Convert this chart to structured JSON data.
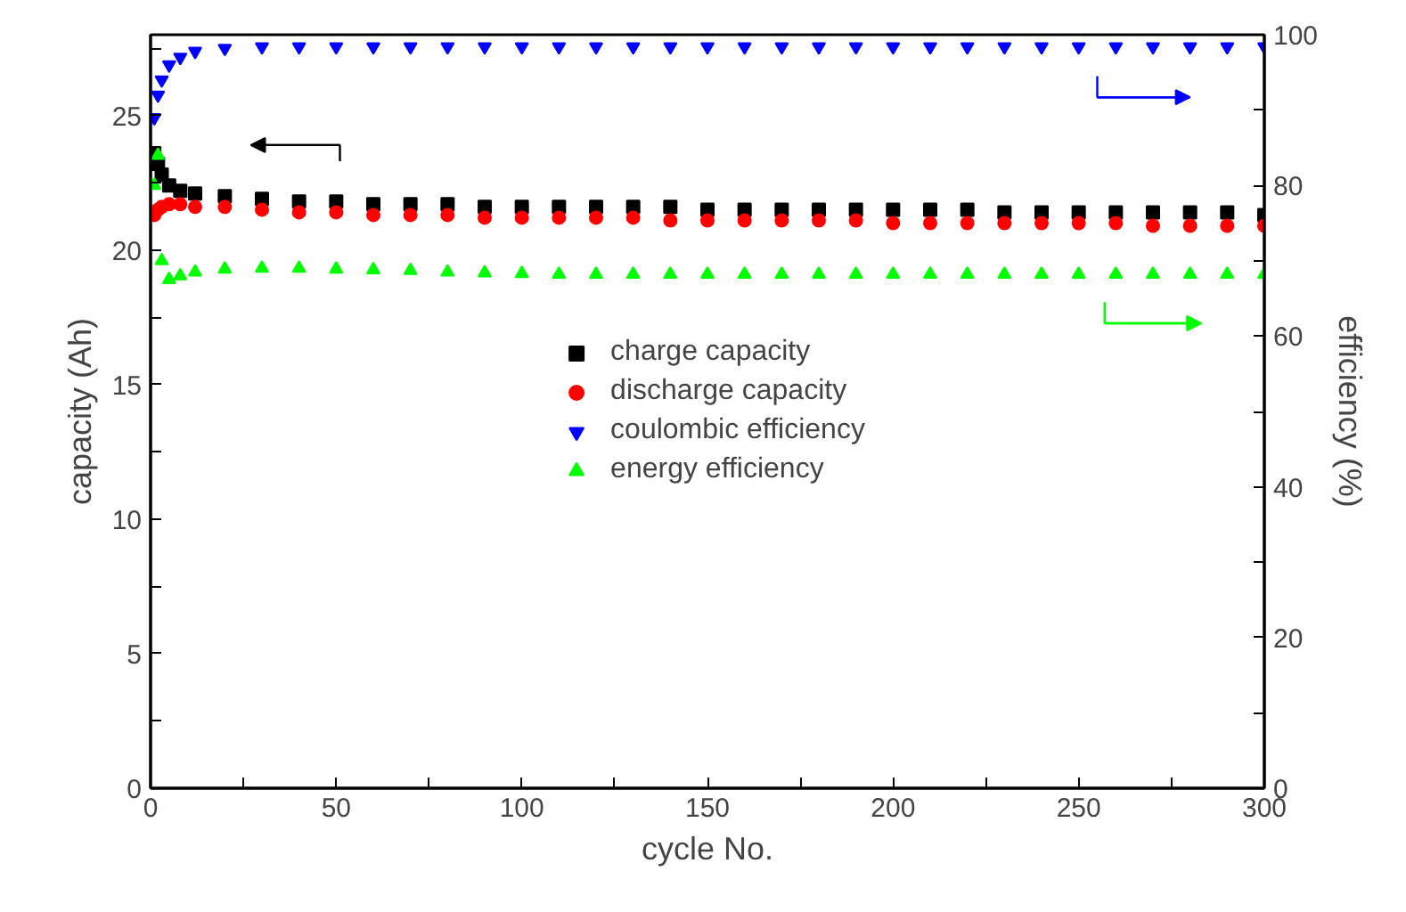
{
  "chart_data": {
    "type": "scatter",
    "xlabel": "cycle No.",
    "ylabel": "capacity (Ah)",
    "y2label": "efficiency (%)",
    "x": [
      1,
      2,
      3,
      5,
      8,
      12,
      20,
      30,
      40,
      50,
      60,
      70,
      80,
      90,
      100,
      110,
      120,
      130,
      140,
      150,
      160,
      170,
      180,
      190,
      200,
      210,
      220,
      230,
      240,
      250,
      260,
      270,
      280,
      290,
      300
    ],
    "series": [
      {
        "name": "charge capacity",
        "color": "#000000",
        "marker": "square",
        "values": [
          23.6,
          23.2,
          22.8,
          22.4,
          22.2,
          22.1,
          22.0,
          21.9,
          21.8,
          21.8,
          21.7,
          21.7,
          21.7,
          21.6,
          21.6,
          21.6,
          21.6,
          21.6,
          21.6,
          21.5,
          21.5,
          21.5,
          21.5,
          21.5,
          21.5,
          21.5,
          21.5,
          21.4,
          21.4,
          21.4,
          21.4,
          21.4,
          21.4,
          21.4,
          21.3
        ]
      },
      {
        "name": "discharge capacity",
        "color": "#ff0000",
        "marker": "circle",
        "values": [
          21.3,
          21.5,
          21.6,
          21.7,
          21.7,
          21.6,
          21.6,
          21.5,
          21.4,
          21.4,
          21.3,
          21.3,
          21.3,
          21.2,
          21.2,
          21.2,
          21.2,
          21.2,
          21.1,
          21.1,
          21.1,
          21.1,
          21.1,
          21.1,
          21.0,
          21.0,
          21.0,
          21.0,
          21.0,
          21.0,
          21.0,
          20.9,
          20.9,
          20.9,
          20.9
        ]
      },
      {
        "name": "coulombic efficiency",
        "color": "#0000ff",
        "marker": "triangle_down",
        "axis": "y2",
        "values": [
          89,
          92,
          94,
          96,
          97,
          97.8,
          98.2,
          98.4,
          98.4,
          98.4,
          98.4,
          98.4,
          98.4,
          98.4,
          98.4,
          98.4,
          98.4,
          98.4,
          98.4,
          98.4,
          98.4,
          98.4,
          98.4,
          98.4,
          98.4,
          98.4,
          98.4,
          98.4,
          98.4,
          98.4,
          98.4,
          98.4,
          98.4,
          98.4,
          98.4
        ]
      },
      {
        "name": "energy efficiency",
        "color": "#00ff00",
        "marker": "triangle",
        "axis": "y2",
        "values": [
          80,
          84,
          70,
          67.5,
          68,
          68.5,
          68.9,
          69,
          69,
          68.9,
          68.8,
          68.7,
          68.5,
          68.4,
          68.3,
          68.2,
          68.2,
          68.2,
          68.2,
          68.2,
          68.2,
          68.2,
          68.2,
          68.2,
          68.2,
          68.2,
          68.2,
          68.2,
          68.2,
          68.2,
          68.2,
          68.2,
          68.2,
          68.2,
          68.2
        ]
      }
    ],
    "xlim": [
      0,
      300
    ],
    "xticks": [
      0,
      {
        "value": 25,
        "label": null
      },
      50,
      {
        "value": 75,
        "label": null
      },
      100,
      {
        "value": 125,
        "label": null
      },
      150,
      {
        "value": 175,
        "label": null
      },
      200,
      {
        "value": 225,
        "label": null
      },
      250,
      {
        "value": 275,
        "label": null
      },
      300
    ],
    "ylim": [
      0,
      28
    ],
    "yticks": [
      0,
      {
        "value": 2.5,
        "label": null
      },
      5,
      {
        "value": 7.5,
        "label": null
      },
      10,
      {
        "value": 12.5,
        "label": null
      },
      15,
      {
        "value": 17.5,
        "label": null
      },
      20,
      {
        "value": 22.5,
        "label": null
      },
      25,
      {
        "value": 27.5,
        "label": null
      }
    ],
    "y2lim": [
      0,
      100
    ],
    "y2ticks": [
      0,
      {
        "value": 10,
        "label": null
      },
      20,
      {
        "value": 30,
        "label": null
      },
      40,
      {
        "value": 50,
        "label": null
      },
      60,
      {
        "value": 70,
        "label": null
      },
      80,
      {
        "value": 90,
        "label": null
      },
      100
    ],
    "grid": false,
    "legend": "center"
  }
}
